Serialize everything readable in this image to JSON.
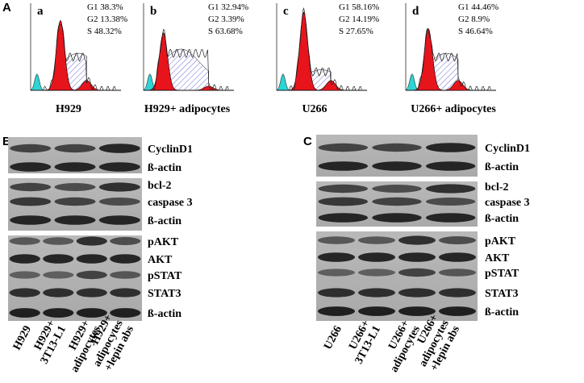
{
  "panel_a": {
    "label": "A",
    "plots": [
      {
        "letter": "a",
        "stats": [
          "G1 38.3%",
          "G2 13.38%",
          "S   48.32%"
        ],
        "caption": "H929"
      },
      {
        "letter": "b",
        "stats": [
          "G1 32.94%",
          "G2   3.39%",
          "S   63.68%"
        ],
        "caption": "H929+ adipocytes"
      },
      {
        "letter": "c",
        "stats": [
          "G1 58.16%",
          "G2 14.19%",
          "S 27.65%"
        ],
        "caption": "U266"
      },
      {
        "letter": "d",
        "stats": [
          "G1 44.46%",
          "G2 8.9%",
          "S   46.64%"
        ],
        "caption": "U266+ adipocytes"
      }
    ]
  },
  "panel_b": {
    "label": "B",
    "proteins": [
      "CyclinD1",
      "ß-actin",
      "bcl-2",
      "caspase 3",
      "ß-actin",
      "pAKT",
      "AKT",
      "pSTAT",
      "STAT3",
      "ß-actin"
    ],
    "lanes": [
      [
        "H929"
      ],
      [
        "H929+",
        "3T13-L1"
      ],
      [
        "H929+",
        "adipocytes"
      ],
      [
        "H929+",
        "adipocytes",
        "+lepin abs"
      ]
    ]
  },
  "panel_c": {
    "label": "C",
    "proteins": [
      "CyclinD1",
      "ß-actin",
      "bcl-2",
      "caspase 3",
      "ß-actin",
      "pAKT",
      "AKT",
      "pSTAT",
      "STAT3",
      "ß-actin"
    ],
    "lanes": [
      [
        "U266"
      ],
      [
        "U266+",
        "3T13-L1"
      ],
      [
        "U266+",
        "adipocytes"
      ],
      [
        "U266+",
        "adipocytes",
        "+lepin abs"
      ]
    ]
  }
}
